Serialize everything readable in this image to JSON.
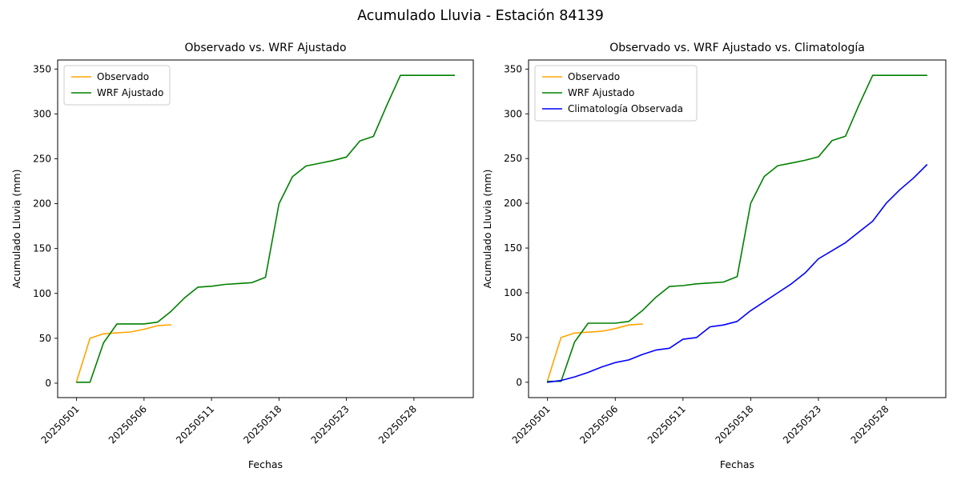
{
  "figure": {
    "title": "Acumulado Lluvia - Estación 84139",
    "background": "#ffffff"
  },
  "chart_data": [
    {
      "type": "line",
      "title": "Observado vs. WRF Ajustado",
      "xlabel": "Fechas",
      "ylabel": "Acumulado Lluvia (mm)",
      "ylim": [
        0,
        350
      ],
      "yticks": [
        0,
        50,
        100,
        150,
        200,
        250,
        300,
        350
      ],
      "xtick_positions": [
        0,
        5,
        10,
        15,
        20,
        25
      ],
      "xtick_labels": [
        "20250501",
        "20250506",
        "20250511",
        "20250518",
        "20250523",
        "20250528"
      ],
      "grid": false,
      "legend_position": "upper left",
      "series": [
        {
          "name": "Observado",
          "color": "#ffa500",
          "values": [
            2,
            50,
            55,
            56,
            57,
            60,
            64,
            65
          ]
        },
        {
          "name": "WRF Ajustado",
          "color": "#008000",
          "values": [
            1,
            1,
            45,
            66,
            66,
            66,
            68,
            80,
            95,
            107,
            108,
            110,
            111,
            112,
            118,
            200,
            230,
            242,
            245,
            248,
            252,
            270,
            275,
            310,
            343,
            343,
            343,
            343,
            343
          ]
        }
      ]
    },
    {
      "type": "line",
      "title": "Observado vs. WRF Ajustado vs. Climatología",
      "xlabel": "Fechas",
      "ylabel": "Acumulado Lluvia (mm)",
      "ylim": [
        0,
        350
      ],
      "yticks": [
        0,
        50,
        100,
        150,
        200,
        250,
        300,
        350
      ],
      "xtick_positions": [
        0,
        5,
        10,
        15,
        20,
        25
      ],
      "xtick_labels": [
        "20250501",
        "20250506",
        "20250511",
        "20250518",
        "20250523",
        "20250528"
      ],
      "grid": false,
      "legend_position": "upper left",
      "series": [
        {
          "name": "Observado",
          "color": "#ffa500",
          "values": [
            2,
            50,
            55,
            56,
            57,
            60,
            64,
            65
          ]
        },
        {
          "name": "WRF Ajustado",
          "color": "#008000",
          "values": [
            1,
            1,
            45,
            66,
            66,
            66,
            68,
            80,
            95,
            107,
            108,
            110,
            111,
            112,
            118,
            200,
            230,
            242,
            245,
            248,
            252,
            270,
            275,
            310,
            343,
            343,
            343,
            343,
            343
          ]
        },
        {
          "name": "Climatología Observada",
          "color": "#0000ff",
          "values": [
            0,
            2,
            6,
            11,
            17,
            22,
            25,
            31,
            36,
            38,
            48,
            50,
            62,
            64,
            68,
            80,
            90,
            100,
            110,
            122,
            138,
            147,
            156,
            168,
            180,
            200,
            215,
            228,
            243
          ]
        }
      ]
    }
  ]
}
